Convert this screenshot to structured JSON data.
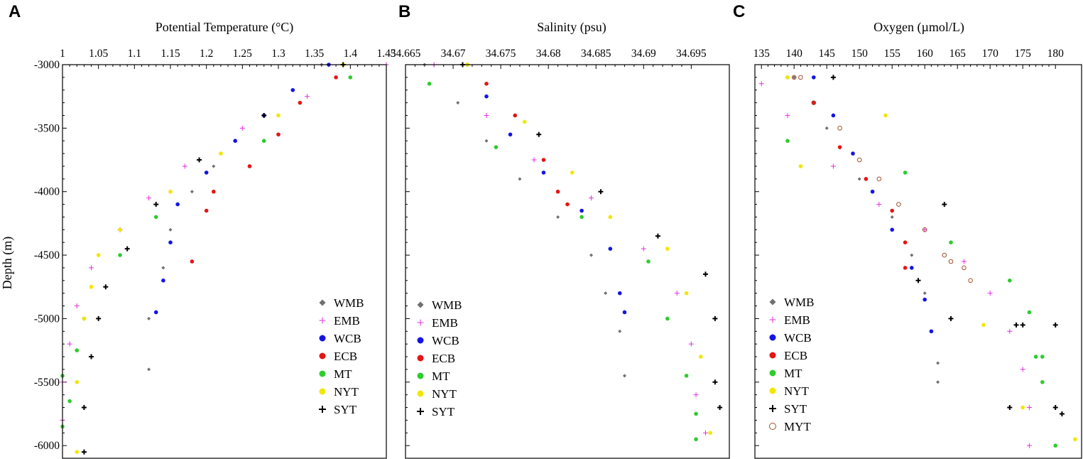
{
  "series_styles": [
    {
      "key": "WMB",
      "marker": "diamond",
      "color": "#707070"
    },
    {
      "key": "EMB",
      "marker": "plus",
      "color": "#e52ee5"
    },
    {
      "key": "WCB",
      "marker": "circle",
      "color": "#1414e6"
    },
    {
      "key": "ECB",
      "marker": "circle",
      "color": "#e61414"
    },
    {
      "key": "MT",
      "marker": "circle",
      "color": "#2ecc2e"
    },
    {
      "key": "NYT",
      "marker": "circle",
      "color": "#f2e600"
    },
    {
      "key": "SYT",
      "marker": "cross",
      "color": "#000000"
    },
    {
      "key": "MYT",
      "marker": "ring",
      "color": "#a0522d"
    }
  ],
  "y_axis": {
    "label": "Depth (m)",
    "range": [
      -6100,
      -3000
    ],
    "ticks": [
      -3000,
      -3500,
      -4000,
      -4500,
      -5000,
      -5500,
      -6000
    ],
    "tick_labels": [
      "-3000",
      "-3500",
      "-4000",
      "-4500",
      "-5000",
      "-5500",
      "-6000"
    ]
  },
  "chart_data": [
    {
      "panel": "A",
      "type": "scatter",
      "title": "Potential Temperature (°C)",
      "xlabel": "Potential Temperature (°C)",
      "ylabel": "Depth (m)",
      "xlim": [
        1.0,
        1.45
      ],
      "ylim": [
        -6100,
        -3000
      ],
      "x_ticks": [
        1.0,
        1.05,
        1.1,
        1.15,
        1.2,
        1.25,
        1.3,
        1.35,
        1.4,
        1.45
      ],
      "x_tick_labels": [
        "1",
        "1.05",
        "1.1",
        "1.15",
        "1.2",
        "1.25",
        "1.3",
        "1.35",
        "1.4",
        "1.45"
      ],
      "legend": [
        "WMB",
        "EMB",
        "WCB",
        "ECB",
        "MT",
        "NYT",
        "SYT"
      ],
      "legend_position": "bottom-right",
      "series": [
        {
          "name": "WMB",
          "points": [
            [
              1.36,
              -3000
            ],
            [
              1.32,
              -3200
            ],
            [
              1.28,
              -3400
            ],
            [
              1.24,
              -3600
            ],
            [
              1.21,
              -3800
            ],
            [
              1.18,
              -4000
            ],
            [
              1.15,
              -4300
            ],
            [
              1.14,
              -4600
            ],
            [
              1.12,
              -5000
            ],
            [
              1.12,
              -5400
            ]
          ]
        },
        {
          "name": "EMB",
          "points": [
            [
              1.45,
              -3000
            ],
            [
              1.34,
              -3250
            ],
            [
              1.25,
              -3500
            ],
            [
              1.17,
              -3800
            ],
            [
              1.12,
              -4050
            ],
            [
              1.08,
              -4300
            ],
            [
              1.04,
              -4600
            ],
            [
              1.02,
              -4900
            ],
            [
              1.01,
              -5200
            ],
            [
              1.0,
              -5500
            ],
            [
              1.0,
              -5800
            ]
          ]
        },
        {
          "name": "WCB",
          "points": [
            [
              1.37,
              -3000
            ],
            [
              1.32,
              -3200
            ],
            [
              1.28,
              -3400
            ],
            [
              1.24,
              -3600
            ],
            [
              1.2,
              -3850
            ],
            [
              1.16,
              -4100
            ],
            [
              1.15,
              -4400
            ],
            [
              1.14,
              -4700
            ],
            [
              1.13,
              -4950
            ]
          ]
        },
        {
          "name": "ECB",
          "points": [
            [
              1.38,
              -3100
            ],
            [
              1.33,
              -3300
            ],
            [
              1.3,
              -3550
            ],
            [
              1.26,
              -3800
            ],
            [
              1.21,
              -4000
            ],
            [
              1.2,
              -4150
            ],
            [
              1.18,
              -4550
            ]
          ]
        },
        {
          "name": "MT",
          "points": [
            [
              1.4,
              -3100
            ],
            [
              1.28,
              -3600
            ],
            [
              1.13,
              -4200
            ],
            [
              1.08,
              -4500
            ],
            [
              1.03,
              -5000
            ],
            [
              1.02,
              -5250
            ],
            [
              1.0,
              -5450
            ],
            [
              1.01,
              -5650
            ],
            [
              1.0,
              -5850
            ]
          ]
        },
        {
          "name": "NYT",
          "points": [
            [
              1.39,
              -3000
            ],
            [
              1.3,
              -3400
            ],
            [
              1.22,
              -3700
            ],
            [
              1.15,
              -4000
            ],
            [
              1.08,
              -4300
            ],
            [
              1.05,
              -4500
            ],
            [
              1.04,
              -4750
            ],
            [
              1.03,
              -5000
            ],
            [
              1.02,
              -5500
            ],
            [
              1.02,
              -6050
            ]
          ]
        },
        {
          "name": "SYT",
          "points": [
            [
              1.39,
              -3000
            ],
            [
              1.28,
              -3400
            ],
            [
              1.19,
              -3750
            ],
            [
              1.13,
              -4100
            ],
            [
              1.09,
              -4450
            ],
            [
              1.06,
              -4750
            ],
            [
              1.05,
              -5000
            ],
            [
              1.04,
              -5300
            ],
            [
              1.03,
              -5700
            ],
            [
              1.03,
              -6050
            ]
          ]
        }
      ]
    },
    {
      "panel": "B",
      "type": "scatter",
      "title": "Salinity (psu)",
      "xlabel": "Salinity (psu)",
      "ylabel": "Depth (m)",
      "xlim": [
        34.665,
        34.699
      ],
      "ylim": [
        -6100,
        -3000
      ],
      "x_ticks": [
        34.665,
        34.67,
        34.675,
        34.68,
        34.685,
        34.69,
        34.695
      ],
      "x_tick_labels": [
        "34.665",
        "34.67",
        "34.675",
        "34.68",
        "34.685",
        "34.69",
        "34.695"
      ],
      "legend": [
        "WMB",
        "EMB",
        "WCB",
        "ECB",
        "MT",
        "NYT",
        "SYT"
      ],
      "legend_position": "bottom-left",
      "series": [
        {
          "name": "WMB",
          "points": [
            [
              34.667,
              -3000
            ],
            [
              34.6705,
              -3300
            ],
            [
              34.6735,
              -3600
            ],
            [
              34.677,
              -3900
            ],
            [
              34.681,
              -4200
            ],
            [
              34.6845,
              -4500
            ],
            [
              34.686,
              -4800
            ],
            [
              34.6875,
              -5100
            ],
            [
              34.688,
              -5450
            ]
          ]
        },
        {
          "name": "EMB",
          "points": [
            [
              34.668,
              -3000
            ],
            [
              34.6735,
              -3400
            ],
            [
              34.6785,
              -3750
            ],
            [
              34.6845,
              -4050
            ],
            [
              34.69,
              -4450
            ],
            [
              34.6935,
              -4800
            ],
            [
              34.695,
              -5200
            ],
            [
              34.6955,
              -5600
            ],
            [
              34.6965,
              -5900
            ]
          ]
        },
        {
          "name": "WCB",
          "points": [
            [
              34.6715,
              -3000
            ],
            [
              34.6735,
              -3250
            ],
            [
              34.676,
              -3550
            ],
            [
              34.6795,
              -3850
            ],
            [
              34.6835,
              -4150
            ],
            [
              34.6865,
              -4450
            ],
            [
              34.6875,
              -4800
            ],
            [
              34.688,
              -4950
            ]
          ]
        },
        {
          "name": "ECB",
          "points": [
            [
              34.6735,
              -3150
            ],
            [
              34.6765,
              -3400
            ],
            [
              34.6795,
              -3750
            ],
            [
              34.681,
              -4000
            ],
            [
              34.682,
              -4100
            ]
          ]
        },
        {
          "name": "MT",
          "points": [
            [
              34.6675,
              -3150
            ],
            [
              34.6745,
              -3650
            ],
            [
              34.6835,
              -4200
            ],
            [
              34.6905,
              -4550
            ],
            [
              34.6925,
              -5000
            ],
            [
              34.6945,
              -5450
            ],
            [
              34.6955,
              -5750
            ],
            [
              34.6955,
              -5950
            ]
          ]
        },
        {
          "name": "NYT",
          "points": [
            [
              34.6715,
              -3000
            ],
            [
              34.6775,
              -3450
            ],
            [
              34.6825,
              -3850
            ],
            [
              34.6865,
              -4200
            ],
            [
              34.6925,
              -4450
            ],
            [
              34.6945,
              -4800
            ],
            [
              34.696,
              -5300
            ],
            [
              34.697,
              -5900
            ]
          ]
        },
        {
          "name": "SYT",
          "points": [
            [
              34.671,
              -3000
            ],
            [
              34.679,
              -3550
            ],
            [
              34.6855,
              -4000
            ],
            [
              34.6915,
              -4350
            ],
            [
              34.6965,
              -4650
            ],
            [
              34.6975,
              -5000
            ],
            [
              34.6975,
              -5500
            ],
            [
              34.698,
              -5700
            ]
          ]
        }
      ]
    },
    {
      "panel": "C",
      "type": "scatter",
      "title": "Oxygen (µmol/L)",
      "xlabel": "Oxygen (µmol/L)",
      "ylabel": "",
      "xlim": [
        134,
        184
      ],
      "ylim": [
        -6100,
        -3000
      ],
      "x_ticks": [
        135,
        140,
        145,
        150,
        155,
        160,
        165,
        170,
        175,
        180
      ],
      "x_tick_labels": [
        "135",
        "140",
        "145",
        "150",
        "155",
        "160",
        "165",
        "170",
        "175",
        "180"
      ],
      "legend": [
        "WMB",
        "EMB",
        "WCB",
        "ECB",
        "MT",
        "NYT",
        "SYT",
        "MYT"
      ],
      "legend_position": "bottom-left",
      "series": [
        {
          "name": "WMB",
          "points": [
            [
              140,
              -3100
            ],
            [
              145,
              -3500
            ],
            [
              150,
              -3900
            ],
            [
              155,
              -4200
            ],
            [
              158,
              -4500
            ],
            [
              160,
              -4800
            ],
            [
              161,
              -5100
            ],
            [
              162,
              -5350
            ],
            [
              162,
              -5500
            ]
          ]
        },
        {
          "name": "EMB",
          "points": [
            [
              135,
              -3150
            ],
            [
              139,
              -3400
            ],
            [
              146,
              -3800
            ],
            [
              153,
              -4100
            ],
            [
              160,
              -4300
            ],
            [
              166,
              -4550
            ],
            [
              170,
              -4800
            ],
            [
              173,
              -5100
            ],
            [
              175,
              -5400
            ],
            [
              176,
              -5700
            ],
            [
              176,
              -6000
            ]
          ]
        },
        {
          "name": "WCB",
          "points": [
            [
              143,
              -3100
            ],
            [
              146,
              -3400
            ],
            [
              149,
              -3700
            ],
            [
              152,
              -4000
            ],
            [
              155,
              -4300
            ],
            [
              158,
              -4600
            ],
            [
              160,
              -4850
            ],
            [
              161,
              -5100
            ]
          ]
        },
        {
          "name": "ECB",
          "points": [
            [
              143,
              -3300
            ],
            [
              147,
              -3650
            ],
            [
              151,
              -3900
            ],
            [
              155,
              -4150
            ],
            [
              157,
              -4400
            ],
            [
              157,
              -4600
            ]
          ]
        },
        {
          "name": "MT",
          "points": [
            [
              139,
              -3100
            ],
            [
              139,
              -3600
            ],
            [
              157,
              -3850
            ],
            [
              164,
              -4400
            ],
            [
              173,
              -4700
            ],
            [
              176,
              -4950
            ],
            [
              177,
              -5300
            ],
            [
              178,
              -5300
            ],
            [
              178,
              -5500
            ],
            [
              180,
              -6000
            ]
          ]
        },
        {
          "name": "NYT",
          "points": [
            [
              139,
              -3100
            ],
            [
              141,
              -3800
            ],
            [
              154,
              -3400
            ],
            [
              169,
              -5050
            ],
            [
              175,
              -5700
            ],
            [
              183,
              -5950
            ]
          ]
        },
        {
          "name": "SYT",
          "points": [
            [
              146,
              -3100
            ],
            [
              159,
              -4700
            ],
            [
              164,
              -5000
            ],
            [
              174,
              -5050
            ],
            [
              175,
              -5050
            ],
            [
              180,
              -5050
            ],
            [
              173,
              -5700
            ],
            [
              180,
              -5700
            ],
            [
              181,
              -5750
            ],
            [
              163,
              -4100
            ]
          ]
        },
        {
          "name": "MYT",
          "points": [
            [
              140,
              -3100
            ],
            [
              141,
              -3100
            ],
            [
              143,
              -3300
            ],
            [
              147,
              -3500
            ],
            [
              150,
              -3750
            ],
            [
              153,
              -3900
            ],
            [
              156,
              -4100
            ],
            [
              160,
              -4300
            ],
            [
              163,
              -4500
            ],
            [
              164,
              -4550
            ],
            [
              166,
              -4600
            ],
            [
              167,
              -4700
            ]
          ]
        }
      ]
    }
  ]
}
